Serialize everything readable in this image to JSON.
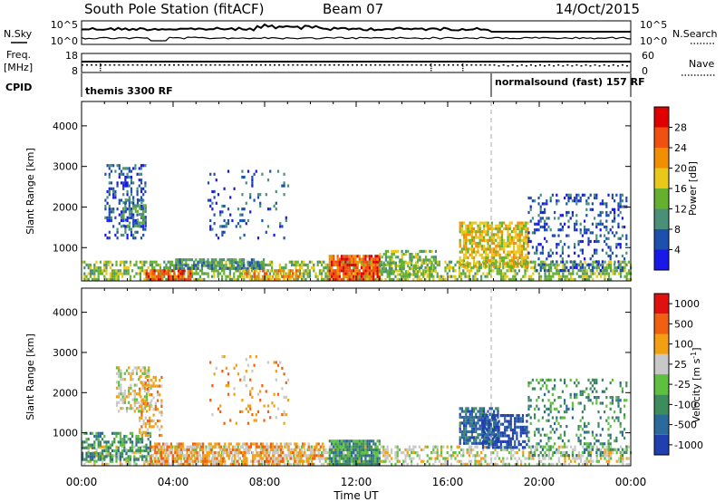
{
  "title": "South Pole Station (fitACF)",
  "beam": "Beam 07",
  "date": "14/Oct/2015",
  "header": {
    "nsky_label": "N.Sky",
    "nsearch_label": "N.Search",
    "noise_ticks": [
      "10^5",
      "10^0"
    ],
    "freq_label_line1": "Freq.",
    "freq_label_line2": "[MHz]",
    "freq_ticks": [
      "18",
      "8"
    ],
    "nave_label": "Nave",
    "nave_ticks": [
      "60",
      "0"
    ],
    "cpid_label": "CPID",
    "cpid_segments": [
      {
        "label": "themis 3300 RF",
        "start_h": 0,
        "end_h": 18
      },
      {
        "label": "normalsound (fast) 157 RF",
        "start_h": 18,
        "end_h": 24
      }
    ]
  },
  "chart_data": [
    {
      "type": "heatmap",
      "name": "power",
      "ylabel": "Slant Range [km]",
      "xlabel": "Time UT",
      "x_ticks": [
        "00:00",
        "04:00",
        "08:00",
        "12:00",
        "16:00",
        "20:00",
        "00:00"
      ],
      "x_range_hours": [
        0,
        24
      ],
      "y_ticks": [
        1000,
        2000,
        3000,
        4000
      ],
      "y_range_km": [
        180,
        4600
      ],
      "colorbar_label": "Power [dB]",
      "colorbar_ticks": [
        "4",
        "8",
        "12",
        "16",
        "20",
        "24",
        "28"
      ],
      "colorbar_colors": [
        "#1818e8",
        "#1c4fae",
        "#4a8f77",
        "#66b030",
        "#e8c818",
        "#f09000",
        "#f05010",
        "#e00000"
      ],
      "regions": [
        {
          "t0": 0.0,
          "t1": 24.0,
          "r0": 180,
          "r1": 620,
          "level": 3,
          "density": 0.55
        },
        {
          "t0": 2.8,
          "t1": 4.8,
          "r0": 180,
          "r1": 450,
          "level": 6,
          "density": 0.8
        },
        {
          "t0": 4.0,
          "t1": 8.0,
          "r0": 450,
          "r1": 700,
          "level": 2,
          "density": 0.7
        },
        {
          "t0": 10.8,
          "t1": 13.0,
          "r0": 180,
          "r1": 800,
          "level": 6,
          "density": 0.85
        },
        {
          "t0": 13.0,
          "t1": 15.5,
          "r0": 300,
          "r1": 900,
          "level": 3,
          "density": 0.55
        },
        {
          "t0": 16.5,
          "t1": 19.5,
          "r0": 500,
          "r1": 1600,
          "level": 4,
          "density": 0.7
        },
        {
          "t0": 1.0,
          "t1": 2.8,
          "r0": 1200,
          "r1": 3000,
          "level": 1,
          "density": 0.35
        },
        {
          "t0": 1.8,
          "t1": 2.8,
          "r0": 1500,
          "r1": 2200,
          "level": 2,
          "density": 0.5
        },
        {
          "t0": 5.5,
          "t1": 9.0,
          "r0": 1200,
          "r1": 2900,
          "level": 1,
          "density": 0.12
        },
        {
          "t0": 19.5,
          "t1": 23.8,
          "r0": 400,
          "r1": 2300,
          "level": 1,
          "density": 0.25
        },
        {
          "t0": 7.0,
          "t1": 9.5,
          "r0": 180,
          "r1": 450,
          "level": 5,
          "density": 0.6
        }
      ]
    },
    {
      "type": "heatmap",
      "name": "velocity",
      "ylabel": "Slant Range [km]",
      "xlabel": "Time UT",
      "x_ticks": [
        "00:00",
        "04:00",
        "08:00",
        "12:00",
        "16:00",
        "20:00",
        "00:00"
      ],
      "x_range_hours": [
        0,
        24
      ],
      "y_ticks": [
        1000,
        2000,
        3000,
        4000
      ],
      "y_range_km": [
        180,
        4600
      ],
      "colorbar_label": "Velocity [m s^-1]",
      "colorbar_ticks": [
        "1000",
        "500",
        "100",
        "25",
        "-25",
        "-100",
        "-500",
        "-1000"
      ],
      "colorbar_colors": [
        "#2040b0",
        "#2d6a9c",
        "#3e8c5c",
        "#5fc040",
        "#c8c8c8",
        "#f0a010",
        "#f06010",
        "#e01010"
      ],
      "regions": [
        {
          "t0": 0.0,
          "t1": 24.0,
          "r0": 180,
          "r1": 620,
          "level": 4,
          "density": 0.45
        },
        {
          "t0": 0.0,
          "t1": 3.0,
          "r0": 300,
          "r1": 1000,
          "level": 2,
          "density": 0.55
        },
        {
          "t0": 3.0,
          "t1": 10.5,
          "r0": 180,
          "r1": 700,
          "level": 5,
          "density": 0.6
        },
        {
          "t0": 10.8,
          "t1": 13.0,
          "r0": 180,
          "r1": 800,
          "level": 2,
          "density": 0.85
        },
        {
          "t0": 16.5,
          "t1": 18.2,
          "r0": 700,
          "r1": 1600,
          "level": 1,
          "density": 0.75
        },
        {
          "t0": 17.5,
          "t1": 19.5,
          "r0": 600,
          "r1": 1400,
          "level": 0,
          "density": 0.6
        },
        {
          "t0": 1.5,
          "t1": 3.0,
          "r0": 1500,
          "r1": 2600,
          "level": 4,
          "density": 0.45
        },
        {
          "t0": 2.5,
          "t1": 3.5,
          "r0": 900,
          "r1": 2400,
          "level": 5,
          "density": 0.35
        },
        {
          "t0": 19.5,
          "t1": 23.8,
          "r0": 400,
          "r1": 2300,
          "level": 2,
          "density": 0.22
        },
        {
          "t0": 5.5,
          "t1": 9.0,
          "r0": 1200,
          "r1": 2900,
          "level": 5,
          "density": 0.1
        }
      ]
    }
  ]
}
